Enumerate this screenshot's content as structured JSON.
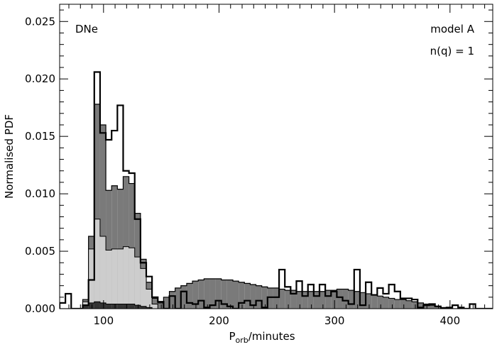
{
  "chart_data": {
    "type": "histogram",
    "xlabel_main": "P",
    "xlabel_sub": "orb",
    "xlabel_rest": "/minutes",
    "ylabel": "Normalised PDF",
    "xlim": [
      62,
      437
    ],
    "ylim": [
      0,
      0.0265
    ],
    "x_ticks": [
      100,
      200,
      300,
      400
    ],
    "x_tick_labels": [
      "100",
      "200",
      "300",
      "400"
    ],
    "y_ticks": [
      0.0,
      0.005,
      0.01,
      0.015,
      0.02,
      0.025
    ],
    "y_tick_labels": [
      "0.000",
      "0.005",
      "0.010",
      "0.015",
      "0.020",
      "0.025"
    ],
    "annotations": {
      "top_left": "DNe",
      "top_right_1": "model A",
      "top_right_2": "n(q)  =  1"
    },
    "colors": {
      "dark_fill": "#7a7a7a",
      "light_fill": "#cdcdcd",
      "darkest_fill": "#333333",
      "outline": "#000000"
    },
    "bin_start": 62,
    "bin_width": 5,
    "series": [
      {
        "style": "dark-filled",
        "values": [
          0,
          0,
          0,
          0,
          0.0008,
          0.0063,
          0.0178,
          0.016,
          0.0103,
          0.0107,
          0.0104,
          0.0115,
          0.0109,
          0.0083,
          0.0043,
          0.0023,
          0.0009,
          0.0005,
          0.001,
          0.0015,
          0.0018,
          0.002,
          0.0022,
          0.0024,
          0.0025,
          0.0026,
          0.0026,
          0.0026,
          0.0025,
          0.0025,
          0.0024,
          0.0023,
          0.0022,
          0.0021,
          0.002,
          0.0019,
          0.0018,
          0.0018,
          0.0017,
          0.0016,
          0.0016,
          0.0015,
          0.0015,
          0.0015,
          0.0015,
          0.0015,
          0.0016,
          0.0016,
          0.0017,
          0.0017,
          0.0016,
          0.0015,
          0.0014,
          0.0013,
          0.0012,
          0.0011,
          0.001,
          0.0009,
          0.0008,
          0.0008,
          0.0007,
          0.0006,
          0.0005,
          0.0004,
          0.0003,
          0.0002,
          0.0001,
          0.0001,
          0,
          0,
          0,
          0,
          0,
          0,
          0
        ]
      },
      {
        "style": "light-filled",
        "values": [
          0,
          0,
          0,
          0,
          0.0006,
          0.0052,
          0.0078,
          0.0063,
          0.0051,
          0.0052,
          0.0052,
          0.0054,
          0.0053,
          0.0045,
          0.0035,
          0.0017,
          0.0004,
          0,
          0,
          0,
          0,
          0,
          0,
          0,
          0,
          0,
          0,
          0,
          0,
          0,
          0,
          0,
          0,
          0,
          0,
          0,
          0,
          0,
          0,
          0,
          0,
          0,
          0,
          0,
          0,
          0,
          0,
          0,
          0,
          0,
          0,
          0,
          0,
          0,
          0,
          0,
          0,
          0,
          0,
          0,
          0,
          0,
          0,
          0,
          0,
          0,
          0,
          0,
          0,
          0,
          0,
          0,
          0,
          0,
          0
        ]
      },
      {
        "style": "darkest-filled",
        "values": [
          0,
          0,
          0,
          0,
          0.0003,
          0.0005,
          0.0006,
          0.0005,
          0.0004,
          0.0004,
          0.0004,
          0.0004,
          0.0004,
          0.0003,
          0.0002,
          0.0001,
          0,
          0,
          0,
          0,
          0,
          0,
          0,
          0,
          0,
          0,
          0,
          0,
          0,
          0,
          0,
          0,
          0,
          0,
          0,
          0,
          0,
          0,
          0,
          0,
          0,
          0,
          0,
          0,
          0,
          0,
          0,
          0,
          0,
          0,
          0,
          0,
          0,
          0,
          0,
          0,
          0,
          0,
          0,
          0,
          0,
          0,
          0,
          0,
          0,
          0,
          0,
          0,
          0,
          0,
          0,
          0,
          0,
          0,
          0
        ]
      },
      {
        "style": "outline",
        "values": [
          0.0005,
          0.0013,
          0,
          0,
          0.0003,
          0.0025,
          0.0206,
          0.0153,
          0.0147,
          0.0155,
          0.0177,
          0.012,
          0.0118,
          0.0078,
          0.004,
          0.0028,
          0.001,
          0.0006,
          0,
          0.0011,
          0,
          0.0015,
          0.0005,
          0.0004,
          0.0007,
          0.0001,
          0.0003,
          0.0007,
          0.0004,
          0.0002,
          0.0,
          0.0005,
          0.0007,
          0.0003,
          0.0007,
          0.0001,
          0.001,
          0.001,
          0.0034,
          0.0019,
          0.0013,
          0.0024,
          0.0011,
          0.0021,
          0.0011,
          0.0021,
          0.0011,
          0.0015,
          0.001,
          0.0007,
          0.0004,
          0.0034,
          0.0003,
          0.0023,
          0.0012,
          0.0018,
          0.0013,
          0.0021,
          0.0015,
          0.0009,
          0.0009,
          0.0008,
          0.0001,
          0.0003,
          0.0004,
          0.0002,
          0.0,
          0.0001,
          0.0003,
          0.0001,
          0.0,
          0.0004,
          0.0,
          0.0,
          0.0
        ]
      }
    ]
  }
}
